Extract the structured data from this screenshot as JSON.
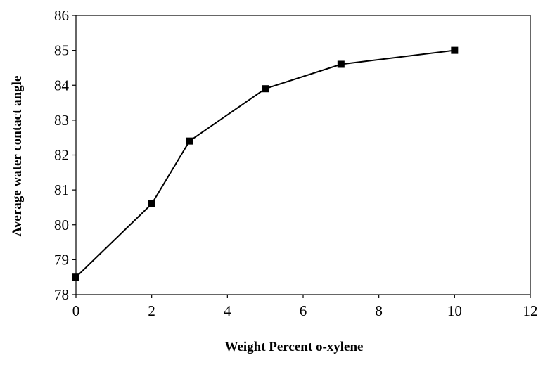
{
  "chart_data": {
    "type": "line",
    "title": "",
    "xlabel": "Weight Percent o-xylene",
    "ylabel": "Average water contact angle",
    "xlim": [
      0,
      12
    ],
    "ylim": [
      78,
      86
    ],
    "xticks": [
      "0",
      "2",
      "4",
      "6",
      "8",
      "10",
      "12"
    ],
    "yticks": [
      "78",
      "79",
      "80",
      "81",
      "82",
      "83",
      "84",
      "85",
      "86"
    ],
    "grid": false,
    "legend": "none",
    "series": [
      {
        "x": [
          0,
          2,
          3,
          5,
          7,
          10
        ],
        "y": [
          78.5,
          80.6,
          82.4,
          83.9,
          84.6,
          85.0
        ],
        "color": "#000000",
        "marker": "square"
      }
    ]
  }
}
